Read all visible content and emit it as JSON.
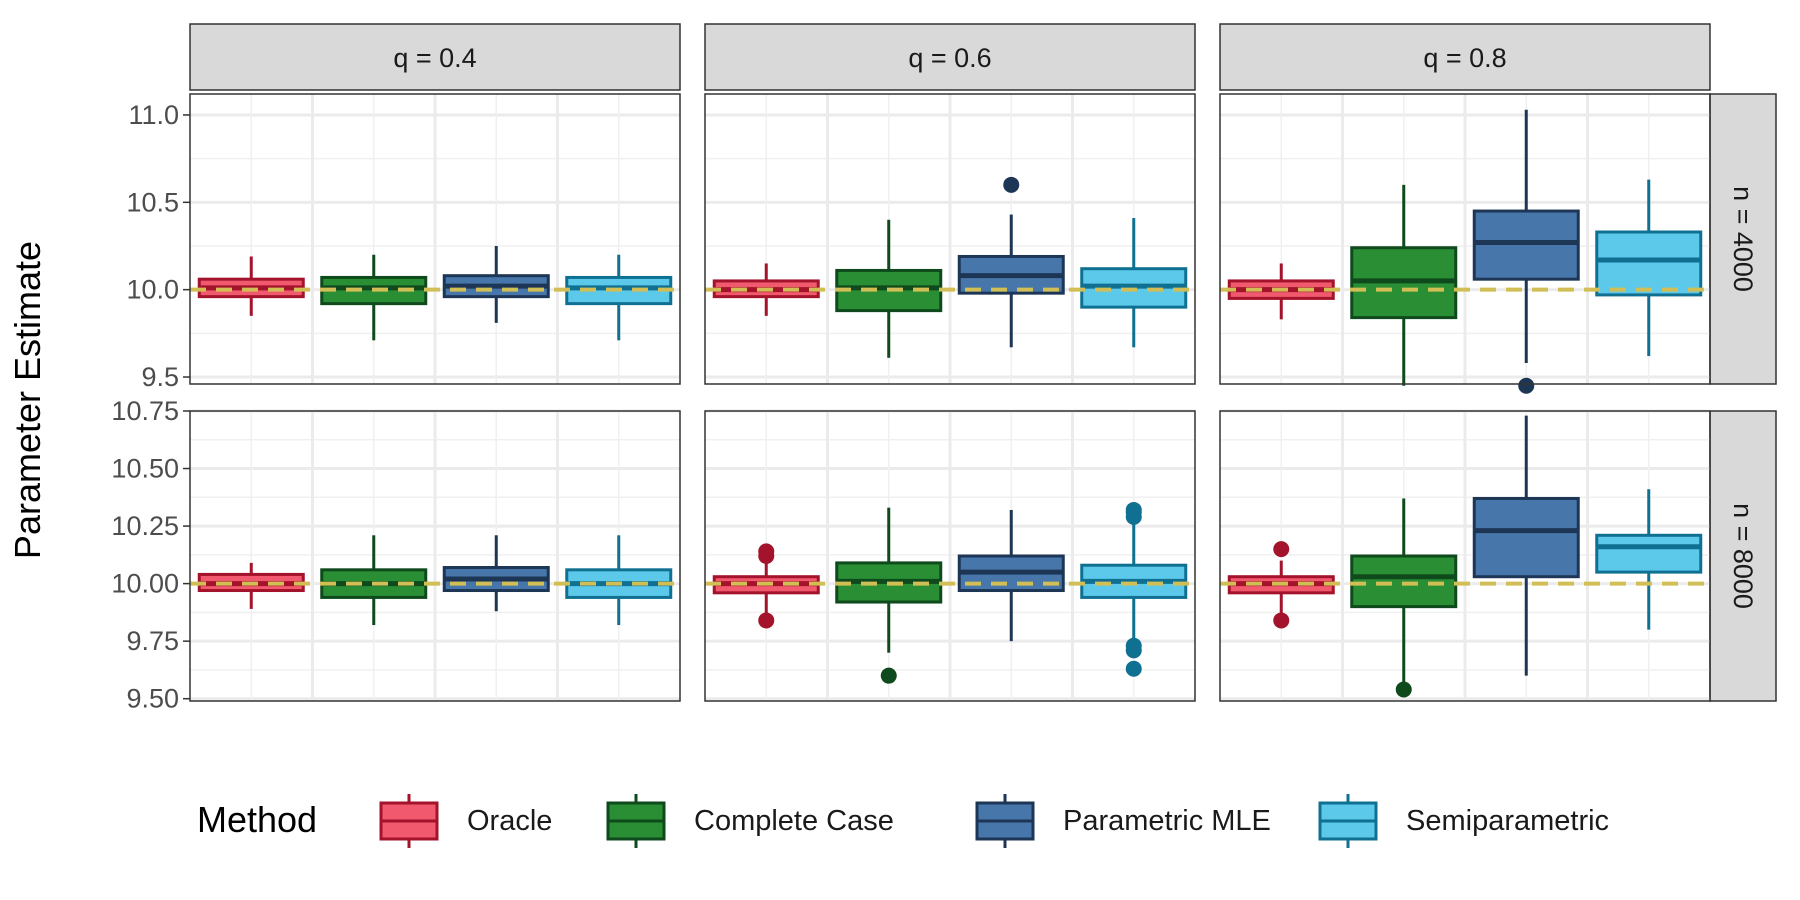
{
  "chart_data": {
    "type": "boxplot",
    "ylabel": "Parameter Estimate",
    "xlabel": "",
    "facet_cols": [
      "q = 0.4",
      "q = 0.6",
      "q = 0.8"
    ],
    "facet_rows": [
      "n = 4000",
      "n = 8000"
    ],
    "reference_line": 10.0,
    "grid": true,
    "legend": {
      "title": "Method",
      "position": "bottom",
      "items": [
        {
          "label": "Oracle",
          "fill": "#F0596E",
          "stroke": "#A3132B"
        },
        {
          "label": "Complete Case",
          "fill": "#2A8E35",
          "stroke": "#0F4A1C"
        },
        {
          "label": "Parametric MLE",
          "fill": "#4776AA",
          "stroke": "#1E3656"
        },
        {
          "label": "Semiparametric",
          "fill": "#5CC8EA",
          "stroke": "#0F7092"
        }
      ]
    },
    "rows": [
      {
        "ylim": [
          9.46,
          11.12
        ],
        "yticks": [
          9.5,
          10.0,
          10.5,
          11.0
        ],
        "ytick_labels": [
          "9.5",
          "10.0",
          "10.5",
          "11.0"
        ],
        "panels": [
          {
            "boxes": [
              {
                "min": 9.85,
                "q1": 9.96,
                "median": 10.01,
                "q3": 10.06,
                "max": 10.19,
                "outliers": []
              },
              {
                "min": 9.71,
                "q1": 9.92,
                "median": 10.01,
                "q3": 10.07,
                "max": 10.2,
                "outliers": []
              },
              {
                "min": 9.81,
                "q1": 9.96,
                "median": 10.02,
                "q3": 10.08,
                "max": 10.25,
                "outliers": []
              },
              {
                "min": 9.71,
                "q1": 9.92,
                "median": 10.01,
                "q3": 10.07,
                "max": 10.2,
                "outliers": []
              }
            ]
          },
          {
            "boxes": [
              {
                "min": 9.85,
                "q1": 9.96,
                "median": 10.0,
                "q3": 10.05,
                "max": 10.15,
                "outliers": []
              },
              {
                "min": 9.61,
                "q1": 9.88,
                "median": 10.01,
                "q3": 10.11,
                "max": 10.4,
                "outliers": []
              },
              {
                "min": 9.67,
                "q1": 9.98,
                "median": 10.08,
                "q3": 10.19,
                "max": 10.43,
                "outliers": [
                  10.6
                ]
              },
              {
                "min": 9.67,
                "q1": 9.9,
                "median": 10.02,
                "q3": 10.12,
                "max": 10.41,
                "outliers": []
              }
            ]
          },
          {
            "boxes": [
              {
                "min": 9.83,
                "q1": 9.95,
                "median": 10.0,
                "q3": 10.05,
                "max": 10.15,
                "outliers": []
              },
              {
                "min": 9.45,
                "q1": 9.84,
                "median": 10.05,
                "q3": 10.24,
                "max": 10.6,
                "outliers": []
              },
              {
                "min": 9.58,
                "q1": 10.06,
                "median": 10.27,
                "q3": 10.45,
                "max": 11.03,
                "outliers": [
                  9.45
                ]
              },
              {
                "min": 9.62,
                "q1": 9.97,
                "median": 10.17,
                "q3": 10.33,
                "max": 10.63,
                "outliers": []
              }
            ]
          }
        ]
      },
      {
        "ylim": [
          9.49,
          10.75
        ],
        "yticks": [
          9.5,
          9.75,
          10.0,
          10.25,
          10.5,
          10.75
        ],
        "ytick_labels": [
          "9.50",
          "9.75",
          "10.00",
          "10.25",
          "10.50",
          "10.75"
        ],
        "panels": [
          {
            "boxes": [
              {
                "min": 9.89,
                "q1": 9.97,
                "median": 10.0,
                "q3": 10.04,
                "max": 10.09,
                "outliers": []
              },
              {
                "min": 9.82,
                "q1": 9.94,
                "median": 10.0,
                "q3": 10.06,
                "max": 10.21,
                "outliers": []
              },
              {
                "min": 9.88,
                "q1": 9.97,
                "median": 10.02,
                "q3": 10.07,
                "max": 10.21,
                "outliers": []
              },
              {
                "min": 9.82,
                "q1": 9.94,
                "median": 10.0,
                "q3": 10.06,
                "max": 10.21,
                "outliers": []
              }
            ]
          },
          {
            "boxes": [
              {
                "min": 9.87,
                "q1": 9.96,
                "median": 10.0,
                "q3": 10.03,
                "max": 10.1,
                "outliers": [
                  9.84,
                  10.12,
                  10.14
                ]
              },
              {
                "min": 9.7,
                "q1": 9.92,
                "median": 10.01,
                "q3": 10.09,
                "max": 10.33,
                "outliers": [
                  9.6
                ]
              },
              {
                "min": 9.75,
                "q1": 9.97,
                "median": 10.05,
                "q3": 10.12,
                "max": 10.32,
                "outliers": []
              },
              {
                "min": 9.75,
                "q1": 9.94,
                "median": 10.01,
                "q3": 10.08,
                "max": 10.26,
                "outliers": [
                  9.63,
                  9.71,
                  9.73,
                  10.29,
                  10.31,
                  10.32
                ]
              }
            ]
          },
          {
            "boxes": [
              {
                "min": 9.87,
                "q1": 9.96,
                "median": 10.0,
                "q3": 10.03,
                "max": 10.1,
                "outliers": [
                  9.84,
                  10.15
                ]
              },
              {
                "min": 9.55,
                "q1": 9.9,
                "median": 10.03,
                "q3": 10.12,
                "max": 10.37,
                "outliers": [
                  9.54
                ]
              },
              {
                "min": 9.6,
                "q1": 10.03,
                "median": 10.23,
                "q3": 10.37,
                "max": 10.73,
                "outliers": []
              },
              {
                "min": 9.8,
                "q1": 10.05,
                "median": 10.16,
                "q3": 10.21,
                "max": 10.41,
                "outliers": []
              }
            ]
          }
        ]
      }
    ]
  }
}
